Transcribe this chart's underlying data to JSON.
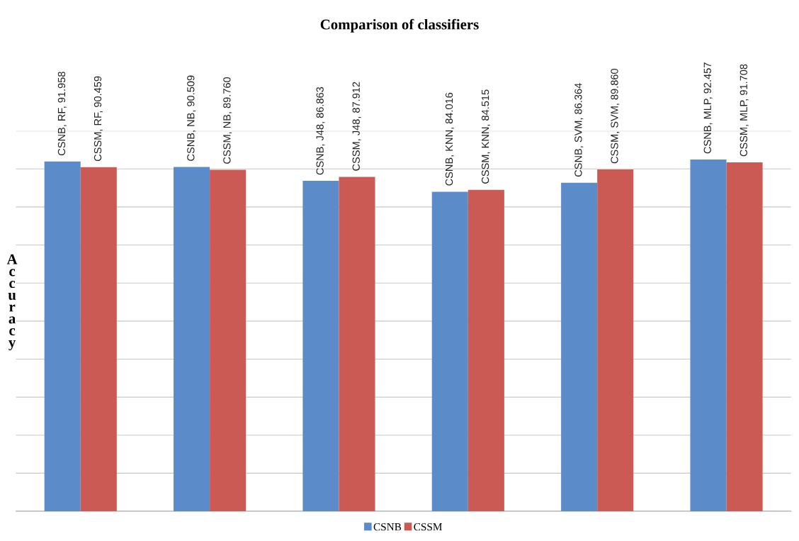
{
  "chart_data": {
    "type": "bar",
    "title": "Comparison of classifiers",
    "ylabel": "Accuracy",
    "categories": [
      null,
      null,
      null,
      null,
      null,
      null
    ],
    "series": [
      {
        "name": "CSNB",
        "color": "#5b8cc9",
        "values": [
          91.958,
          90.509,
          86.863,
          84.016,
          86.364,
          92.457
        ],
        "value_labels": [
          "CSNB, RF, 91.958",
          "CSNB, NB, 90.509",
          "CSNB, J48, 86.863",
          "CSNB, KNN, 84.016",
          "CSNB, SVM, 86.364",
          "CSNB, MLP, 92.457"
        ]
      },
      {
        "name": "CSSM",
        "color": "#cb5a55",
        "values": [
          90.459,
          89.76,
          87.912,
          84.515,
          89.86,
          91.708
        ],
        "value_labels": [
          "CSSM, RF, 90.459",
          "CSSM, NB, 89.760",
          "CSSM, J48, 87.912",
          "CSSM, KNN, 84.515",
          "CSSM, SVM, 89.860",
          "CSSM, MLP, 91.708"
        ]
      }
    ],
    "ylim": [
      0,
      100
    ],
    "yticks": [
      {
        "value": 0,
        "label": null
      },
      {
        "value": 10,
        "label": null
      },
      {
        "value": 20,
        "label": null
      },
      {
        "value": 30,
        "label": null
      },
      {
        "value": 40,
        "label": null
      },
      {
        "value": 50,
        "label": null
      },
      {
        "value": 60,
        "label": null
      },
      {
        "value": 70,
        "label": null
      },
      {
        "value": 80,
        "label": null
      },
      {
        "value": 90,
        "label": null
      },
      {
        "value": 100,
        "label": null
      }
    ],
    "grid": "y",
    "legend": "bottom"
  }
}
